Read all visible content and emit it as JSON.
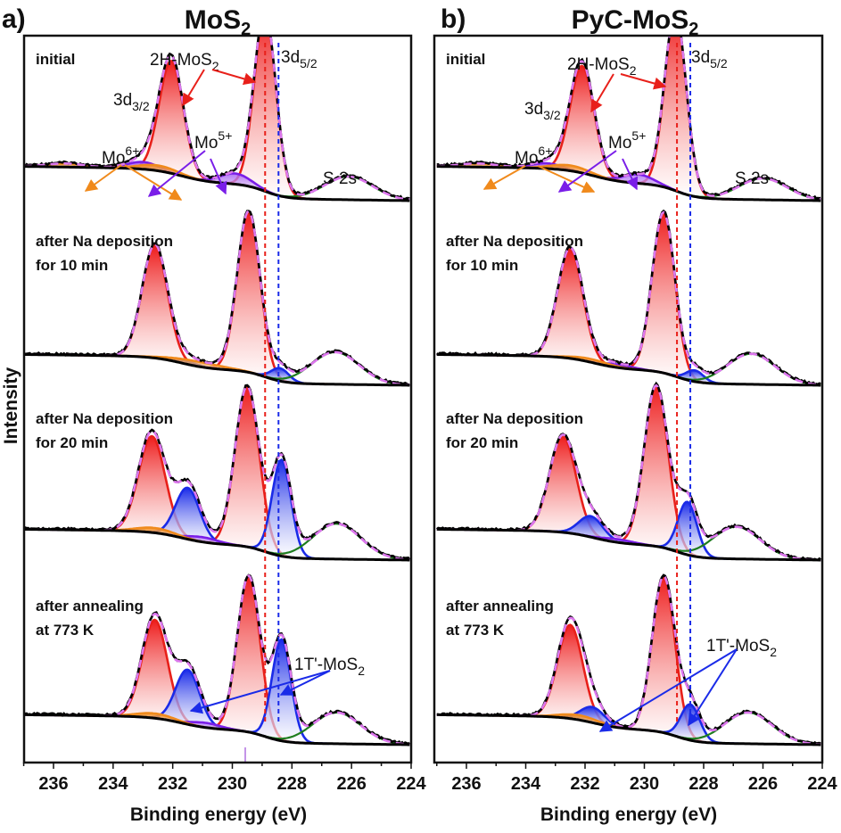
{
  "chart_data": [
    {
      "type": "line",
      "panel": "a)",
      "title": "MoS2",
      "title_main": "MoS",
      "title_sub": "2",
      "xlabel": "Binding energy (eV)",
      "ylabel": "Intensity",
      "xlim": [
        237,
        224
      ],
      "x_reversed": true,
      "xticks": [
        236,
        234,
        232,
        230,
        228,
        226,
        224
      ],
      "grid": false,
      "reference_lines": [
        {
          "name": "2H-MoS2 3d5/2",
          "x": 228.9,
          "color": "#e8201a",
          "style": "dashed"
        },
        {
          "name": "1T'-MoS2 3d5/2",
          "x": 228.45,
          "color": "#1a2be8",
          "style": "dashed"
        }
      ],
      "annotations": [
        {
          "text": "2H-MoS2",
          "main": "2H-MoS",
          "sub": "2",
          "color": "#e8201a",
          "stage": "initial"
        },
        {
          "text": "3d3/2",
          "main": "3d",
          "sub": "3/2",
          "stage": "initial"
        },
        {
          "text": "3d5/2",
          "main": "3d",
          "sub": "5/2",
          "stage": "initial"
        },
        {
          "text": "Mo6+",
          "main": "Mo",
          "sup": "6+",
          "color": "#f08a1c",
          "stage": "initial"
        },
        {
          "text": "Mo5+",
          "main": "Mo",
          "sup": "5+",
          "color": "#7a1ee8",
          "stage": "initial"
        },
        {
          "text": "S 2s",
          "stage": "initial"
        },
        {
          "text": "1T'-MoS2",
          "main": "1T'-MoS",
          "sub": "2",
          "color": "#1a2be8",
          "stage": "after annealing at 773 K"
        }
      ],
      "stages": [
        {
          "label_lines": [
            "initial"
          ],
          "components": [
            {
              "name": "2H-MoS2 3d5/2",
              "color": "#e8201a",
              "center": 228.9,
              "height": 1.0,
              "fwhm": 0.85
            },
            {
              "name": "2H-MoS2 3d3/2",
              "color": "#e8201a",
              "center": 232.05,
              "height": 0.63,
              "fwhm": 0.95
            },
            {
              "name": "Mo5+ 3d5/2",
              "color": "#7a1ee8",
              "center": 229.9,
              "height": 0.06,
              "fwhm": 1.2
            },
            {
              "name": "Mo5+ 3d3/2",
              "color": "#7a1ee8",
              "center": 233.0,
              "height": 0.04,
              "fwhm": 1.2
            },
            {
              "name": "Mo6+ 3d5/2",
              "color": "#f08a1c",
              "center": 232.5,
              "height": 0.03,
              "fwhm": 1.5
            },
            {
              "name": "Mo6+ 3d3/2",
              "color": "#f08a1c",
              "center": 235.6,
              "height": 0.02,
              "fwhm": 1.5
            },
            {
              "name": "S 2s",
              "color": "#1e7d1e",
              "center": 226.1,
              "height": 0.13,
              "fwhm": 1.9
            }
          ]
        },
        {
          "label_lines": [
            "after Na deposition",
            "for 10 min"
          ],
          "components": [
            {
              "name": "2H-MoS2 3d5/2",
              "color": "#e8201a",
              "center": 229.45,
              "height": 1.0,
              "fwhm": 0.9
            },
            {
              "name": "2H-MoS2 3d3/2",
              "color": "#e8201a",
              "center": 232.6,
              "height": 0.7,
              "fwhm": 1.0
            },
            {
              "name": "1T'-MoS2 3d5/2",
              "color": "#1a2be8",
              "center": 228.4,
              "height": 0.08,
              "fwhm": 0.7
            },
            {
              "name": "1T'-MoS2 3d3/2",
              "color": "#1a2be8",
              "center": 231.6,
              "height": 0.02,
              "fwhm": 0.9
            },
            {
              "name": "Mo6+",
              "color": "#f08a1c",
              "center": 231.2,
              "height": 0.03,
              "fwhm": 2.0
            },
            {
              "name": "S 2s",
              "color": "#1e7d1e",
              "center": 226.55,
              "height": 0.2,
              "fwhm": 1.9
            }
          ]
        },
        {
          "label_lines": [
            "after Na deposition",
            "for 20 min"
          ],
          "components": [
            {
              "name": "2H-MoS2 3d5/2",
              "color": "#e8201a",
              "center": 229.5,
              "height": 1.0,
              "fwhm": 0.95
            },
            {
              "name": "2H-MoS2 3d3/2",
              "color": "#e8201a",
              "center": 232.7,
              "height": 0.6,
              "fwhm": 1.05
            },
            {
              "name": "1T'-MoS2 3d5/2",
              "color": "#1a2be8",
              "center": 228.35,
              "height": 0.6,
              "fwhm": 0.75
            },
            {
              "name": "1T'-MoS2 3d3/2",
              "color": "#1a2be8",
              "center": 231.5,
              "height": 0.32,
              "fwhm": 0.95
            },
            {
              "name": "Mo5+",
              "color": "#7a1ee8",
              "center": 231.0,
              "height": 0.03,
              "fwhm": 1.2
            },
            {
              "name": "Mo6+",
              "color": "#f08a1c",
              "center": 232.6,
              "height": 0.03,
              "fwhm": 1.5
            },
            {
              "name": "S 2s",
              "color": "#1e7d1e",
              "center": 226.5,
              "height": 0.22,
              "fwhm": 1.9
            }
          ]
        },
        {
          "label_lines": [
            "after annealing",
            "at 773 K"
          ],
          "components": [
            {
              "name": "2H-MoS2 3d5/2",
              "color": "#e8201a",
              "center": 229.45,
              "height": 1.0,
              "fwhm": 0.9
            },
            {
              "name": "2H-MoS2 3d3/2",
              "color": "#e8201a",
              "center": 232.6,
              "height": 0.63,
              "fwhm": 1.0
            },
            {
              "name": "1T'-MoS2 3d5/2",
              "color": "#1a2be8",
              "center": 228.35,
              "height": 0.65,
              "fwhm": 0.75
            },
            {
              "name": "1T'-MoS2 3d3/2",
              "color": "#1a2be8",
              "center": 231.5,
              "height": 0.35,
              "fwhm": 0.95
            },
            {
              "name": "Mo5+",
              "color": "#7a1ee8",
              "center": 230.9,
              "height": 0.03,
              "fwhm": 1.2
            },
            {
              "name": "Mo6+",
              "color": "#f08a1c",
              "center": 232.6,
              "height": 0.03,
              "fwhm": 1.5
            },
            {
              "name": "S 2s",
              "color": "#1e7d1e",
              "center": 226.5,
              "height": 0.2,
              "fwhm": 1.9
            }
          ]
        }
      ]
    },
    {
      "type": "line",
      "panel": "b)",
      "title": "PyC-MoS2",
      "title_main": "PyC-MoS",
      "title_sub": "2",
      "xlabel": "Binding energy (eV)",
      "ylabel": "Intensity",
      "xlim": [
        237,
        224
      ],
      "x_reversed": true,
      "xticks": [
        236,
        234,
        232,
        230,
        228,
        226,
        224
      ],
      "grid": false,
      "reference_lines": [
        {
          "name": "2H-MoS2 3d5/2",
          "x": 228.9,
          "color": "#e8201a",
          "style": "dashed"
        },
        {
          "name": "1T'-MoS2 3d5/2",
          "x": 228.45,
          "color": "#1a2be8",
          "style": "dashed"
        }
      ],
      "annotations": [
        {
          "text": "2H-MoS2",
          "main": "2H-MoS",
          "sub": "2",
          "color": "#e8201a",
          "stage": "initial"
        },
        {
          "text": "3d3/2",
          "main": "3d",
          "sub": "3/2",
          "stage": "initial"
        },
        {
          "text": "3d5/2",
          "main": "3d",
          "sub": "5/2",
          "stage": "initial"
        },
        {
          "text": "Mo6+",
          "main": "Mo",
          "sup": "6+",
          "color": "#f08a1c",
          "stage": "initial"
        },
        {
          "text": "Mo5+",
          "main": "Mo",
          "sup": "5+",
          "color": "#7a1ee8",
          "stage": "initial"
        },
        {
          "text": "S 2s",
          "stage": "initial"
        },
        {
          "text": "1T'-MoS2",
          "main": "1T'-MoS",
          "sub": "2",
          "color": "#1a2be8",
          "stage": "after annealing at 773 K"
        }
      ],
      "stages": [
        {
          "label_lines": [
            "initial"
          ],
          "components": [
            {
              "name": "2H-MoS2 3d5/2",
              "color": "#e8201a",
              "center": 228.95,
              "height": 1.0,
              "fwhm": 0.85
            },
            {
              "name": "2H-MoS2 3d3/2",
              "color": "#e8201a",
              "center": 232.1,
              "height": 0.6,
              "fwhm": 0.95
            },
            {
              "name": "Mo5+ 3d5/2",
              "color": "#7a1ee8",
              "center": 230.2,
              "height": 0.05,
              "fwhm": 1.2
            },
            {
              "name": "Mo5+ 3d3/2",
              "color": "#7a1ee8",
              "center": 233.3,
              "height": 0.03,
              "fwhm": 1.2
            },
            {
              "name": "Mo6+ 3d5/2",
              "color": "#f08a1c",
              "center": 232.5,
              "height": 0.03,
              "fwhm": 1.5
            },
            {
              "name": "Mo6+ 3d3/2",
              "color": "#f08a1c",
              "center": 235.6,
              "height": 0.02,
              "fwhm": 1.5
            },
            {
              "name": "S 2s",
              "color": "#1e7d1e",
              "center": 226.0,
              "height": 0.12,
              "fwhm": 1.9
            }
          ]
        },
        {
          "label_lines": [
            "after Na deposition",
            "for 10 min"
          ],
          "components": [
            {
              "name": "2H-MoS2 3d5/2",
              "color": "#e8201a",
              "center": 229.35,
              "height": 1.0,
              "fwhm": 0.9
            },
            {
              "name": "2H-MoS2 3d3/2",
              "color": "#e8201a",
              "center": 232.5,
              "height": 0.68,
              "fwhm": 1.0
            },
            {
              "name": "1T'-MoS2 3d5/2",
              "color": "#1a2be8",
              "center": 228.3,
              "height": 0.07,
              "fwhm": 0.7
            },
            {
              "name": "Mo5+",
              "color": "#7a1ee8",
              "center": 230.9,
              "height": 0.02,
              "fwhm": 1.2
            },
            {
              "name": "Mo6+",
              "color": "#f08a1c",
              "center": 231.8,
              "height": 0.02,
              "fwhm": 1.5
            },
            {
              "name": "S 2s",
              "color": "#1e7d1e",
              "center": 226.4,
              "height": 0.19,
              "fwhm": 1.9
            }
          ]
        },
        {
          "label_lines": [
            "after Na deposition",
            "for 20 min"
          ],
          "components": [
            {
              "name": "2H-MoS2 3d5/2",
              "color": "#e8201a",
              "center": 229.6,
              "height": 1.0,
              "fwhm": 0.95
            },
            {
              "name": "2H-MoS2 3d3/2",
              "color": "#e8201a",
              "center": 232.75,
              "height": 0.6,
              "fwhm": 1.05
            },
            {
              "name": "1T'-MoS2 3d5/2",
              "color": "#1a2be8",
              "center": 228.55,
              "height": 0.33,
              "fwhm": 0.75
            },
            {
              "name": "1T'-MoS2 3d3/2",
              "color": "#1a2be8",
              "center": 231.8,
              "height": 0.13,
              "fwhm": 0.95
            },
            {
              "name": "Mo5+",
              "color": "#7a1ee8",
              "center": 230.9,
              "height": 0.02,
              "fwhm": 1.2
            },
            {
              "name": "S 2s",
              "color": "#1e7d1e",
              "center": 226.9,
              "height": 0.2,
              "fwhm": 1.9
            }
          ]
        },
        {
          "label_lines": [
            "after annealing",
            "at 773 K"
          ],
          "components": [
            {
              "name": "2H-MoS2 3d5/2",
              "color": "#e8201a",
              "center": 229.35,
              "height": 1.0,
              "fwhm": 0.9
            },
            {
              "name": "2H-MoS2 3d3/2",
              "color": "#e8201a",
              "center": 232.5,
              "height": 0.6,
              "fwhm": 1.0
            },
            {
              "name": "1T'-MoS2 3d5/2",
              "color": "#1a2be8",
              "center": 228.45,
              "height": 0.23,
              "fwhm": 0.75
            },
            {
              "name": "1T'-MoS2 3d3/2",
              "color": "#1a2be8",
              "center": 231.75,
              "height": 0.1,
              "fwhm": 0.95
            },
            {
              "name": "Mo6+",
              "color": "#f08a1c",
              "center": 232.2,
              "height": 0.03,
              "fwhm": 1.5
            },
            {
              "name": "S 2s",
              "color": "#1e7d1e",
              "center": 226.5,
              "height": 0.2,
              "fwhm": 1.9
            }
          ]
        }
      ]
    }
  ],
  "legend_colors": {
    "raw_data": "#000000",
    "envelope_fit": "#dd77ee",
    "background": "#000000",
    "2H-MoS2": "#e8201a",
    "1T'-MoS2": "#1a2be8",
    "Mo5+": "#7a1ee8",
    "Mo6+": "#f08a1c",
    "S 2s": "#1e7d1e"
  }
}
